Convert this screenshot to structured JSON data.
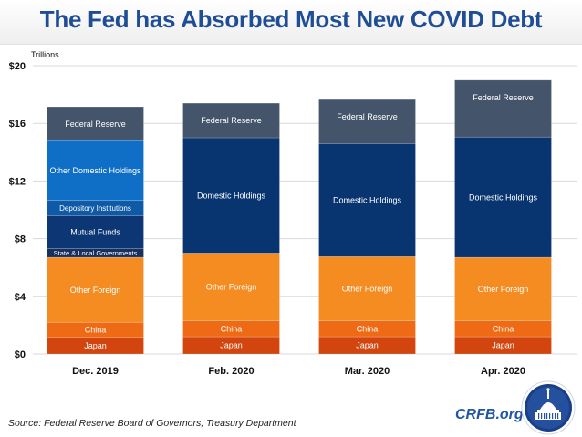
{
  "header": {
    "title": "The Fed has Absorbed Most New COVID Debt"
  },
  "footer": {
    "source": "Source: Federal Reserve Board of Governors, Treasury Department",
    "brand": "CRFB.org",
    "logo_icon": "capitol-dome-seal-icon"
  },
  "colors": {
    "Japan": "#d2450f",
    "China": "#ef6a15",
    "Other Foreign": "#f58c22",
    "State & Local Governments": "#17305e",
    "Mutual Funds": "#0d3674",
    "Depository Institutions": "#0e5aa7",
    "Other Domestic Holdings": "#0f6ec6",
    "Domestic Holdings": "#083470",
    "Federal Reserve": "#44546a"
  },
  "chart_data": {
    "type": "bar",
    "stacked": true,
    "title": "The Fed has Absorbed Most New COVID Debt",
    "ylabel": "Trillions",
    "xlabel": "",
    "ylim": [
      0,
      20
    ],
    "yticks": [
      0,
      4,
      8,
      12,
      16,
      20
    ],
    "ytick_labels": [
      "$0",
      "$4",
      "$8",
      "$12",
      "$16",
      "$20"
    ],
    "grid": true,
    "legend": "none (segments labeled inline)",
    "categories": [
      "Dec. 2019",
      "Feb. 2020",
      "Mar. 2020",
      "Apr. 2020"
    ],
    "bars": [
      {
        "category": "Dec. 2019",
        "segments": [
          {
            "name": "Japan",
            "value": 1.15
          },
          {
            "name": "China",
            "value": 1.05
          },
          {
            "name": "Other Foreign",
            "value": 4.5
          },
          {
            "name": "State & Local Governments",
            "value": 0.6
          },
          {
            "name": "Mutual Funds",
            "value": 2.3
          },
          {
            "name": "Depository Institutions",
            "value": 1.05
          },
          {
            "name": "Other Domestic Holdings",
            "value": 4.15
          },
          {
            "name": "Federal Reserve",
            "value": 2.35
          }
        ]
      },
      {
        "category": "Feb. 2020",
        "segments": [
          {
            "name": "Japan",
            "value": 1.2
          },
          {
            "name": "China",
            "value": 1.1
          },
          {
            "name": "Other Foreign",
            "value": 4.7
          },
          {
            "name": "Domestic Holdings",
            "value": 8.0
          },
          {
            "name": "Federal Reserve",
            "value": 2.4
          }
        ]
      },
      {
        "category": "Mar. 2020",
        "segments": [
          {
            "name": "Japan",
            "value": 1.2
          },
          {
            "name": "China",
            "value": 1.1
          },
          {
            "name": "Other Foreign",
            "value": 4.45
          },
          {
            "name": "Domestic Holdings",
            "value": 7.85
          },
          {
            "name": "Federal Reserve",
            "value": 3.05
          }
        ]
      },
      {
        "category": "Apr. 2020",
        "segments": [
          {
            "name": "Japan",
            "value": 1.2
          },
          {
            "name": "China",
            "value": 1.1
          },
          {
            "name": "Other Foreign",
            "value": 4.4
          },
          {
            "name": "Domestic Holdings",
            "value": 8.35
          },
          {
            "name": "Federal Reserve",
            "value": 3.95
          }
        ]
      }
    ]
  }
}
